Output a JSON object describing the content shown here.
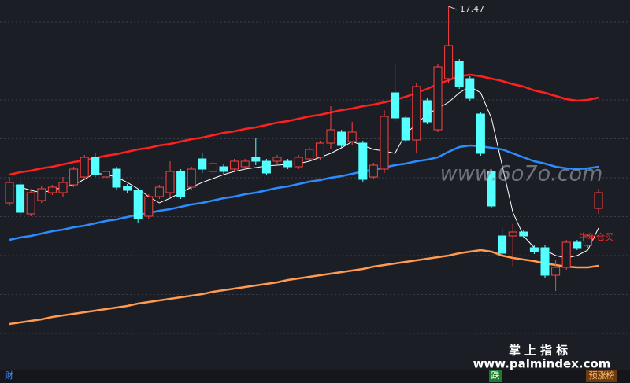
{
  "chart_data": {
    "type": "candlestick",
    "ylim": [
      12.68,
      17.55
    ],
    "up_color": "#ff4040",
    "down_color": "#54ffff",
    "ohlc": {
      "open": [
        14.97,
        15.2,
        14.83,
        15.0,
        15.1,
        15.1,
        15.2,
        15.3,
        15.55,
        15.3,
        15.4,
        15.18,
        15.13,
        14.8,
        15.05,
        15.1,
        15.37,
        15.17,
        15.53,
        15.37,
        15.43,
        15.4,
        15.43,
        15.55,
        15.5,
        15.5,
        15.5,
        15.43,
        15.53,
        15.55,
        15.73,
        15.87,
        15.75,
        15.73,
        15.3,
        15.4,
        16.37,
        16.05,
        15.77,
        16.27,
        15.9,
        16.55,
        16.77,
        16.55,
        16.1,
        15.37,
        14.55,
        14.55,
        14.6,
        14.4,
        14.4,
        14.05,
        14.15,
        14.47,
        14.43,
        14.9
      ],
      "close": [
        15.23,
        14.85,
        15.1,
        15.15,
        15.17,
        15.23,
        15.4,
        15.55,
        15.33,
        15.37,
        15.17,
        15.13,
        14.77,
        15.05,
        15.17,
        15.37,
        15.05,
        15.4,
        15.4,
        15.47,
        15.37,
        15.5,
        15.5,
        15.5,
        15.35,
        15.55,
        15.43,
        15.55,
        15.65,
        15.73,
        15.9,
        15.7,
        15.87,
        15.27,
        15.45,
        16.07,
        16.05,
        15.77,
        16.45,
        16.0,
        16.7,
        16.97,
        16.45,
        16.3,
        15.6,
        14.93,
        14.33,
        14.6,
        14.55,
        14.35,
        14.05,
        14.15,
        14.47,
        14.4,
        14.55,
        15.1
      ],
      "high": [
        15.3,
        15.25,
        15.15,
        15.18,
        15.2,
        15.3,
        15.43,
        15.58,
        15.6,
        15.4,
        15.43,
        15.21,
        15.15,
        15.08,
        15.2,
        15.5,
        15.4,
        15.43,
        15.6,
        15.5,
        15.46,
        15.53,
        15.53,
        15.8,
        15.53,
        15.58,
        15.53,
        15.58,
        15.68,
        15.76,
        16.2,
        15.9,
        16.0,
        15.76,
        15.48,
        16.15,
        16.73,
        16.08,
        16.5,
        16.3,
        16.73,
        17.47,
        16.8,
        16.58,
        16.13,
        15.4,
        14.65,
        14.7,
        14.63,
        14.43,
        14.43,
        14.25,
        14.5,
        14.5,
        14.58,
        15.15
      ],
      "low": [
        14.93,
        14.8,
        14.8,
        14.97,
        15.07,
        15.05,
        15.17,
        15.27,
        15.3,
        15.27,
        15.14,
        15.1,
        14.72,
        14.77,
        15.02,
        15.05,
        15.02,
        15.14,
        15.35,
        15.34,
        15.34,
        15.37,
        15.4,
        15.45,
        15.32,
        15.47,
        15.4,
        15.4,
        15.5,
        15.52,
        15.65,
        15.67,
        15.7,
        15.24,
        15.27,
        15.35,
        16.0,
        15.74,
        15.6,
        15.97,
        15.87,
        16.5,
        16.42,
        16.27,
        15.57,
        14.9,
        14.3,
        14.17,
        14.52,
        14.32,
        14.02,
        13.85,
        14.12,
        14.37,
        14.4,
        14.83
      ]
    },
    "lines": [
      {
        "color": "#ff2020",
        "values": [
          15.33,
          15.36,
          15.38,
          15.41,
          15.43,
          15.46,
          15.49,
          15.51,
          15.54,
          15.57,
          15.59,
          15.62,
          15.65,
          15.67,
          15.7,
          15.72,
          15.75,
          15.78,
          15.8,
          15.83,
          15.86,
          15.88,
          15.91,
          15.93,
          15.96,
          15.99,
          16.01,
          16.04,
          16.07,
          16.09,
          16.12,
          16.15,
          16.17,
          16.2,
          16.22,
          16.25,
          16.28,
          16.32,
          16.37,
          16.42,
          16.48,
          16.53,
          16.58,
          16.6,
          16.58,
          16.55,
          16.52,
          16.48,
          16.45,
          16.4,
          16.37,
          16.33,
          16.29,
          16.27,
          16.28,
          16.31
        ]
      },
      {
        "color": "#ffffff",
        "values": [
          15.2,
          15.17,
          15.13,
          15.1,
          15.13,
          15.17,
          15.2,
          15.27,
          15.35,
          15.33,
          15.3,
          15.23,
          15.15,
          15.05,
          14.97,
          15.03,
          15.1,
          15.17,
          15.23,
          15.28,
          15.33,
          15.37,
          15.4,
          15.42,
          15.44,
          15.45,
          15.46,
          15.47,
          15.5,
          15.55,
          15.6,
          15.67,
          15.75,
          15.7,
          15.65,
          15.63,
          15.6,
          15.85,
          15.97,
          16.1,
          16.17,
          16.25,
          16.37,
          16.45,
          16.37,
          16.05,
          15.45,
          14.85,
          14.55,
          14.4,
          14.37,
          14.3,
          14.27,
          14.3,
          14.37,
          14.65
        ]
      },
      {
        "color": "#2a8cff",
        "values": [
          14.5,
          14.53,
          14.55,
          14.58,
          14.61,
          14.63,
          14.66,
          14.68,
          14.71,
          14.74,
          14.76,
          14.79,
          14.82,
          14.84,
          14.87,
          14.89,
          14.92,
          14.95,
          14.97,
          15.0,
          15.03,
          15.05,
          15.08,
          15.1,
          15.13,
          15.16,
          15.18,
          15.21,
          15.24,
          15.26,
          15.29,
          15.31,
          15.34,
          15.37,
          15.39,
          15.42,
          15.45,
          15.47,
          15.5,
          15.52,
          15.55,
          15.62,
          15.68,
          15.7,
          15.69,
          15.67,
          15.65,
          15.6,
          15.55,
          15.5,
          15.47,
          15.43,
          15.41,
          15.4,
          15.41,
          15.43
        ]
      },
      {
        "color": "#ff9a50",
        "values": [
          13.43,
          13.45,
          13.47,
          13.49,
          13.52,
          13.54,
          13.56,
          13.58,
          13.6,
          13.62,
          13.64,
          13.66,
          13.69,
          13.71,
          13.73,
          13.75,
          13.77,
          13.79,
          13.81,
          13.84,
          13.86,
          13.88,
          13.9,
          13.92,
          13.94,
          13.96,
          13.99,
          14.01,
          14.03,
          14.05,
          14.07,
          14.09,
          14.11,
          14.13,
          14.16,
          14.18,
          14.2,
          14.22,
          14.24,
          14.26,
          14.28,
          14.3,
          14.33,
          14.35,
          14.37,
          14.35,
          14.3,
          14.27,
          14.25,
          14.23,
          14.2,
          14.18,
          14.16,
          14.15,
          14.15,
          14.17
        ]
      }
    ],
    "signal_label": "牛年仓买",
    "watermark": "www.6o7o.com"
  },
  "footer": {
    "brand": "掌上指标",
    "site": "www.palmindex.com",
    "left_tab": "财",
    "fall_tab": "跌",
    "rank_tab": "预涨榜"
  }
}
